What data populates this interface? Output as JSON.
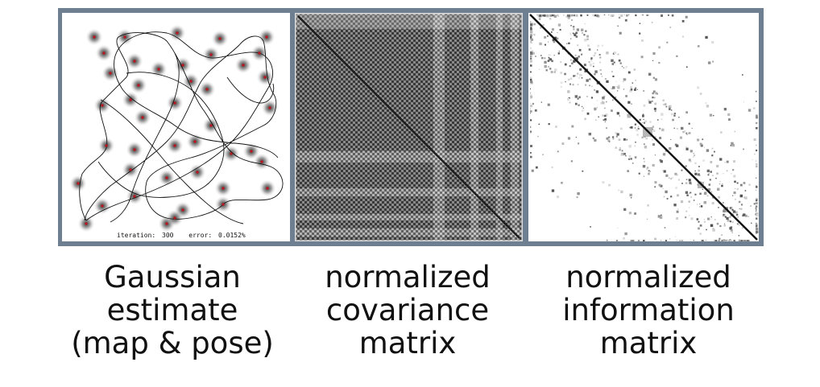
{
  "panels": {
    "map": {
      "iteration_label": "iteration:",
      "iteration_value": "300",
      "error_label": "error:",
      "error_value": "0.0152%"
    }
  },
  "captions": [
    [
      "Gaussian",
      "estimate",
      "(map & pose)"
    ],
    [
      "normalized",
      "covariance",
      "matrix"
    ],
    [
      "normalized",
      "information",
      "matrix"
    ]
  ],
  "colors": {
    "frame": "#6f7f92",
    "landmark_center": "#c0141c",
    "matrix_dark": "#222222"
  }
}
